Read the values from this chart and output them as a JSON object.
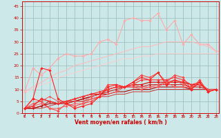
{
  "x": [
    0,
    1,
    2,
    3,
    4,
    5,
    6,
    7,
    8,
    9,
    10,
    11,
    12,
    13,
    14,
    15,
    16,
    17,
    18,
    19,
    20,
    21,
    22,
    23
  ],
  "series": [
    {
      "color": "#ffaaaa",
      "alpha": 1.0,
      "lw": 0.8,
      "marker": "D",
      "ms": 1.8,
      "values": [
        9,
        19,
        16,
        19,
        23,
        25,
        24,
        24,
        25,
        30,
        31,
        29,
        39,
        40,
        39,
        39,
        42,
        35,
        39,
        29,
        33,
        29,
        29,
        26
      ]
    },
    {
      "color": "#ffbbbb",
      "alpha": 0.85,
      "lw": 0.9,
      "marker": null,
      "ms": 0,
      "values": [
        9,
        11,
        13,
        15,
        17,
        18,
        20,
        21,
        22,
        23,
        24,
        25,
        26,
        27,
        28,
        28,
        29,
        30,
        30,
        30,
        30,
        29,
        28,
        26
      ]
    },
    {
      "color": "#ffcccc",
      "alpha": 0.75,
      "lw": 0.9,
      "marker": null,
      "ms": 0,
      "values": [
        9,
        10,
        12,
        13,
        15,
        16,
        17,
        18,
        19,
        20,
        21,
        22,
        23,
        23,
        24,
        24,
        25,
        25,
        25,
        25,
        25,
        25,
        25,
        25
      ]
    },
    {
      "color": "#ff4444",
      "alpha": 1.0,
      "lw": 0.8,
      "marker": "D",
      "ms": 1.8,
      "values": [
        2,
        6,
        5,
        2,
        1,
        4,
        3,
        4,
        5,
        7,
        12,
        12,
        11,
        13,
        16,
        15,
        17,
        13,
        16,
        15,
        10,
        14,
        9,
        10
      ]
    },
    {
      "color": "#dd1111",
      "alpha": 1.0,
      "lw": 0.9,
      "marker": "D",
      "ms": 1.8,
      "values": [
        2,
        3,
        6,
        5,
        4,
        5,
        6,
        7,
        8,
        8,
        10,
        11,
        11,
        12,
        12,
        13,
        13,
        13,
        13,
        13,
        12,
        12,
        10,
        10
      ]
    },
    {
      "color": "#cc2222",
      "alpha": 1.0,
      "lw": 0.8,
      "marker": "D",
      "ms": 1.5,
      "values": [
        2,
        2,
        3,
        5,
        4,
        4,
        5,
        6,
        7,
        8,
        9,
        10,
        11,
        11,
        11,
        12,
        12,
        12,
        12,
        12,
        11,
        11,
        10,
        10
      ]
    },
    {
      "color": "#aa0000",
      "alpha": 1.0,
      "lw": 0.8,
      "marker": null,
      "ms": 0,
      "values": [
        2,
        2,
        3,
        4,
        4,
        5,
        5,
        6,
        7,
        8,
        8,
        9,
        9,
        10,
        10,
        10,
        11,
        11,
        11,
        11,
        10,
        10,
        10,
        10
      ]
    },
    {
      "color": "#cc3333",
      "alpha": 1.0,
      "lw": 0.7,
      "marker": null,
      "ms": 0,
      "values": [
        2,
        2,
        2,
        3,
        4,
        4,
        5,
        5,
        6,
        7,
        7,
        8,
        8,
        9,
        9,
        9,
        10,
        10,
        10,
        10,
        10,
        10,
        10,
        10
      ]
    },
    {
      "color": "#ff5555",
      "alpha": 1.0,
      "lw": 0.7,
      "marker": "D",
      "ms": 1.5,
      "values": [
        2,
        3,
        4,
        2,
        2,
        3,
        4,
        4,
        6,
        7,
        8,
        9,
        11,
        11,
        10,
        11,
        11,
        13,
        11,
        11,
        11,
        13,
        10,
        10
      ]
    },
    {
      "color": "#ee5555",
      "alpha": 1.0,
      "lw": 0.7,
      "marker": "D",
      "ms": 1.5,
      "values": [
        2,
        4,
        5,
        7,
        5,
        5,
        5,
        5,
        7,
        8,
        10,
        11,
        11,
        12,
        11,
        11,
        12,
        13,
        14,
        12,
        11,
        12,
        10,
        10
      ]
    },
    {
      "color": "#ff3333",
      "alpha": 1.0,
      "lw": 0.8,
      "marker": "D",
      "ms": 1.8,
      "values": [
        2,
        3,
        6,
        5,
        4,
        5,
        6,
        7,
        8,
        9,
        10,
        11,
        11,
        12,
        14,
        14,
        14,
        14,
        15,
        14,
        12,
        13,
        9,
        10
      ]
    },
    {
      "color": "#ff2222",
      "alpha": 1.0,
      "lw": 0.8,
      "marker": "D",
      "ms": 1.8,
      "values": [
        2,
        6,
        19,
        18,
        6,
        4,
        2,
        3,
        4,
        7,
        11,
        12,
        11,
        13,
        15,
        14,
        17,
        12,
        14,
        13,
        10,
        13,
        9,
        10
      ]
    }
  ],
  "xlim": [
    -0.3,
    23.3
  ],
  "ylim": [
    0,
    47
  ],
  "yticks": [
    0,
    5,
    10,
    15,
    20,
    25,
    30,
    35,
    40,
    45
  ],
  "xticks": [
    0,
    1,
    2,
    3,
    4,
    5,
    6,
    7,
    8,
    9,
    10,
    11,
    12,
    13,
    14,
    15,
    16,
    17,
    18,
    19,
    20,
    21,
    22,
    23
  ],
  "xlabel": "Vent moyen/en rafales ( km/h )",
  "bg_color": "#cce8e8",
  "grid_color": "#99bbbb",
  "tick_color": "#cc0000",
  "label_color": "#cc0000",
  "arrow_color": "#cc2222"
}
